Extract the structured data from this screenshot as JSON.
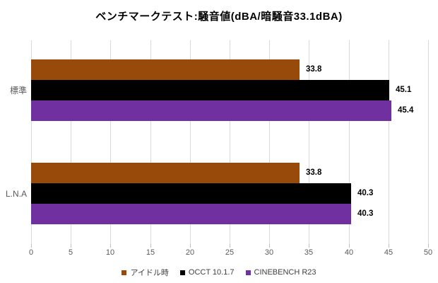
{
  "title": "ベンチマークテスト:騒音値(dBA/暗騒音33.1dBA)",
  "chart_data": {
    "type": "bar",
    "orientation": "horizontal",
    "title": "ベンチマークテスト:騒音値(dBA/暗騒音33.1dBA)",
    "categories": [
      "標準",
      "L.N.A"
    ],
    "series": [
      {
        "name": "アイドル時",
        "color": "#974a09",
        "values": [
          33.8,
          33.8
        ]
      },
      {
        "name": "OCCT 10.1.7",
        "color": "#000000",
        "values": [
          45.1,
          40.3
        ]
      },
      {
        "name": "CINEBENCH R23",
        "color": "#7030a0",
        "values": [
          45.4,
          40.3
        ]
      }
    ],
    "xlim": [
      0,
      50
    ],
    "xticks": [
      0,
      5,
      10,
      15,
      20,
      25,
      30,
      35,
      40,
      45,
      50
    ],
    "xlabel": "",
    "ylabel": "",
    "grid": "vertical",
    "gridline_color": "#d9d9d9",
    "legend_position": "bottom",
    "value_labels": true,
    "value_label_format": "one-decimal"
  }
}
